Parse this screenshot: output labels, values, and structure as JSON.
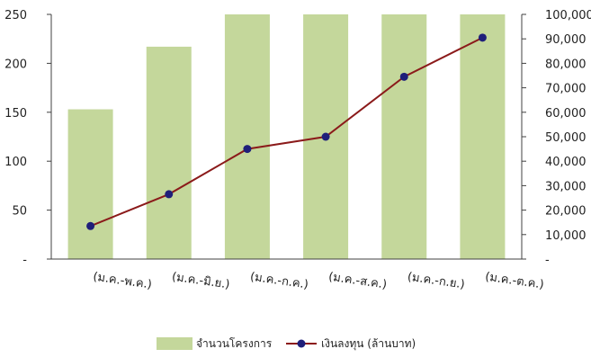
{
  "chart_data": {
    "type": "bar",
    "categories": [
      "(ม.ค.-พ.ค.)",
      "(ม.ค.-มิ.ย.)",
      "(ม.ค.-ก.ค.)",
      "(ม.ค.-ส.ค.)",
      "(ม.ค.-ก.ย.)",
      "(ม.ค.-ต.ค.)"
    ],
    "series": [
      {
        "name": "จำนวนโครงการ",
        "type": "bar",
        "axis": "left",
        "color": "#c4d79b",
        "values": [
          153,
          217,
          251,
          251,
          251,
          251
        ]
      },
      {
        "name": "เงินลงทุน (ล้านบาท)",
        "type": "line",
        "axis": "right",
        "color": "#8b1a1a",
        "marker_color": "#1f1f7a",
        "values": [
          13500,
          26500,
          45000,
          50000,
          74500,
          90500
        ]
      }
    ],
    "y_left": {
      "ylim": [
        0,
        250
      ],
      "ticks": [
        0,
        50,
        100,
        150,
        200,
        250
      ],
      "tick_labels": [
        "-",
        "50",
        "100",
        "150",
        "200",
        "250"
      ]
    },
    "y_right": {
      "ylim": [
        0,
        100000
      ],
      "ticks": [
        0,
        10000,
        20000,
        30000,
        40000,
        50000,
        60000,
        70000,
        80000,
        90000,
        100000
      ],
      "tick_labels": [
        "-",
        "10,000",
        "20,000",
        "30,000",
        "40,000",
        "50,000",
        "60,000",
        "70,000",
        "80,000",
        "90,000",
        "100,000"
      ]
    },
    "grid": false,
    "legend": "bottom"
  }
}
